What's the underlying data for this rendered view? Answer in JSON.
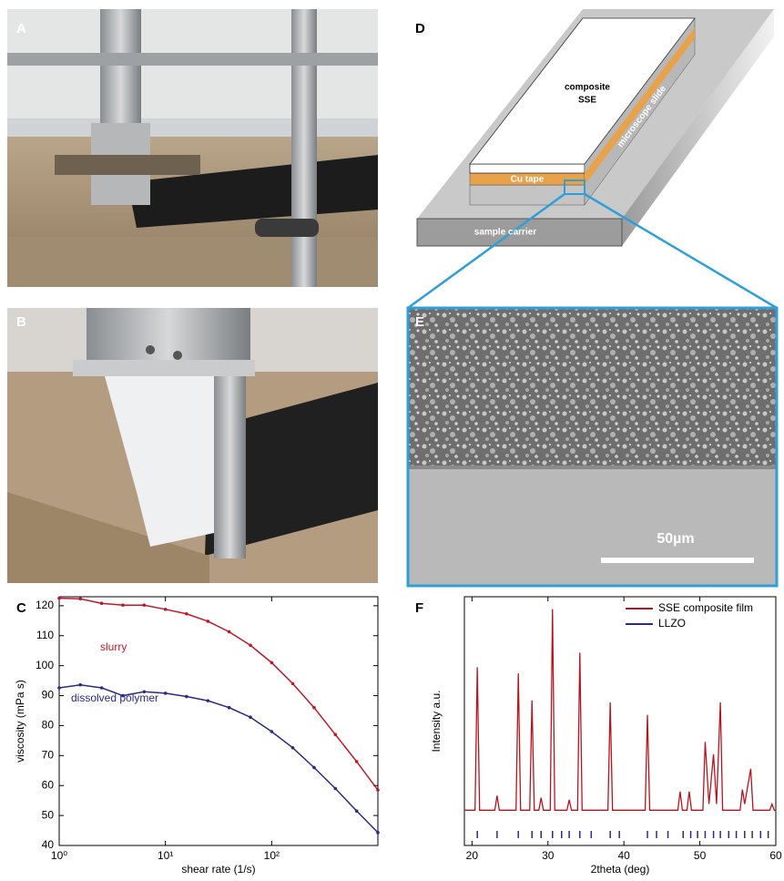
{
  "panel_labels": [
    "A",
    "B",
    "C",
    "D",
    "E",
    "F"
  ],
  "diagram": {
    "top_layer": [
      "composite",
      "SSE"
    ],
    "tape": "Cu tape",
    "slide": "microscope slide",
    "carrier": "sample carrier"
  },
  "sem": {
    "scale_bar": "50µm"
  },
  "chart_data": [
    {
      "type": "line",
      "log_x": true,
      "x": [
        1,
        1.58,
        2.51,
        3.98,
        6.31,
        10,
        15.8,
        25.1,
        39.8,
        63.1,
        100,
        158,
        251,
        398,
        631,
        1000
      ],
      "series": [
        {
          "name": "slurry",
          "color": "#c0182a",
          "values": [
            122.5,
            122.3,
            120.8,
            120.2,
            120.2,
            118.8,
            117.3,
            114.8,
            111.3,
            106.8,
            101,
            94,
            86,
            77,
            68,
            58.5
          ]
        },
        {
          "name": "dissolved polymer",
          "color": "#2a2a8a",
          "values": [
            92.6,
            93.6,
            92.6,
            90,
            91.3,
            90.8,
            89.7,
            88.3,
            86,
            82.8,
            78,
            72.6,
            66,
            59,
            51.5,
            44.3
          ]
        }
      ],
      "xlim": [
        1,
        1000
      ],
      "ylim": [
        40,
        123
      ],
      "xticks": [
        {
          "value": 1,
          "label": "10⁰"
        },
        {
          "value": 10,
          "label": "10¹"
        },
        {
          "value": 100,
          "label": "10²"
        }
      ],
      "yticks": [
        40,
        50,
        60,
        70,
        80,
        90,
        100,
        110,
        120
      ],
      "xlabel": "shear rate (1/s)",
      "ylabel": "viscosity (mPa s)"
    },
    {
      "type": "line",
      "x": [
        19.0,
        20.4,
        20.7,
        21.0,
        23.0,
        23.3,
        23.6,
        25.8,
        26.1,
        26.4,
        27.6,
        27.9,
        28.2,
        28.8,
        29.1,
        29.4,
        30.3,
        30.6,
        30.9,
        32.5,
        32.8,
        33.1,
        33.9,
        34.2,
        34.5,
        37.9,
        38.2,
        38.5,
        42.8,
        43.1,
        43.4,
        47.1,
        47.4,
        47.7,
        48.3,
        48.6,
        48.9,
        50.4,
        50.7,
        51.2,
        51.8,
        52.2,
        52.7,
        53.0,
        55.3,
        55.6,
        55.9,
        56.7,
        57.0,
        59.2,
        59.5,
        59.8,
        60.0
      ],
      "series": [
        {
          "name": "SSE composite film",
          "color": "#b8141e",
          "values": [
            3,
            3,
            72,
            3,
            3,
            10,
            3,
            3,
            69,
            3,
            3,
            56,
            3,
            3,
            9,
            3,
            3,
            100,
            3,
            3,
            8,
            3,
            3,
            79,
            3,
            3,
            55,
            3,
            3,
            49,
            3,
            3,
            12,
            3,
            3,
            12,
            3,
            3,
            36,
            6,
            30,
            6,
            55,
            3,
            3,
            13,
            6,
            23,
            3,
            3,
            6,
            3,
            3
          ]
        },
        {
          "name": "LLZO",
          "color": "#2a2a8a",
          "peaks": [
            20.7,
            23.3,
            26.1,
            27.9,
            29.1,
            30.6,
            31.8,
            32.8,
            34.2,
            35.7,
            38.2,
            39.4,
            43.1,
            44.3,
            45.8,
            47.8,
            48.8,
            49.7,
            50.7,
            51.8,
            52.7,
            53.8,
            54.8,
            55.9,
            56.9,
            58.0,
            59.0
          ]
        }
      ],
      "xlim": [
        19,
        60
      ],
      "ylim": [
        -14,
        106
      ],
      "xticks": [
        20,
        30,
        40,
        50,
        60
      ],
      "xlabel": "2theta (deg)",
      "ylabel": "Intensity a.u.",
      "legend": "upper right"
    }
  ]
}
